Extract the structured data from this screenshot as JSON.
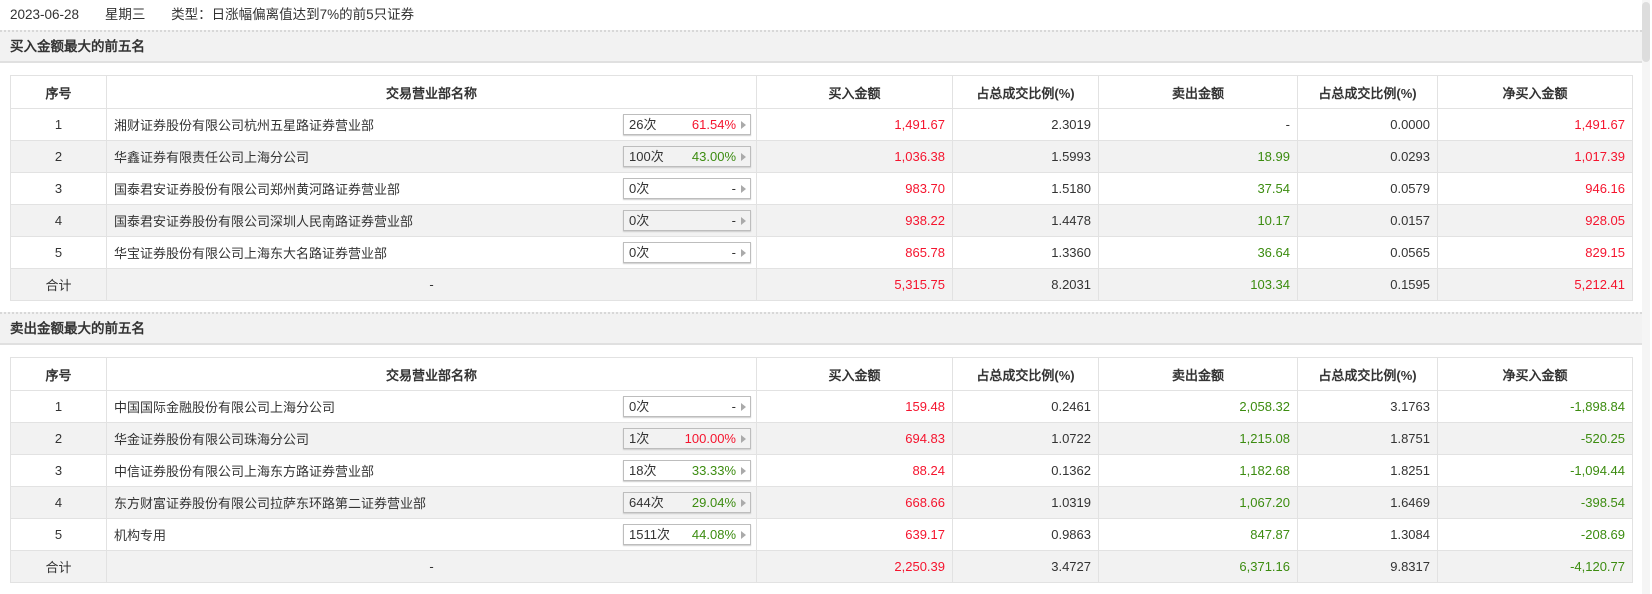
{
  "header": {
    "date": "2023-06-28",
    "weekday": "星期三",
    "type": "类型：日涨幅偏离值达到7%的前5只证券"
  },
  "columns": [
    "序号",
    "交易营业部名称",
    "买入金额",
    "占总成交比例(%)",
    "卖出金额",
    "占总成交比例(%)",
    "净买入金额"
  ],
  "colors": {
    "red": "#f5142e",
    "green": "#3c8c10"
  },
  "buy": {
    "title": "买入金额最大的前五名",
    "rows": [
      {
        "no": "1",
        "name": "湘财证券股份有限公司杭州五星路证券营业部",
        "times": "26次",
        "rate": "61.54%",
        "rate_color": "red",
        "buy": "1,491.67",
        "buy_pct": "2.3019",
        "sell": "-",
        "sell_pct": "0.0000",
        "net": "1,491.67",
        "net_color": "red"
      },
      {
        "no": "2",
        "name": "华鑫证券有限责任公司上海分公司",
        "times": "100次",
        "rate": "43.00%",
        "rate_color": "green",
        "buy": "1,036.38",
        "buy_pct": "1.5993",
        "sell": "18.99",
        "sell_pct": "0.0293",
        "net": "1,017.39",
        "net_color": "red"
      },
      {
        "no": "3",
        "name": "国泰君安证券股份有限公司郑州黄河路证券营业部",
        "times": "0次",
        "rate": "-",
        "rate_color": "",
        "buy": "983.70",
        "buy_pct": "1.5180",
        "sell": "37.54",
        "sell_pct": "0.0579",
        "net": "946.16",
        "net_color": "red"
      },
      {
        "no": "4",
        "name": "国泰君安证券股份有限公司深圳人民南路证券营业部",
        "times": "0次",
        "rate": "-",
        "rate_color": "",
        "buy": "938.22",
        "buy_pct": "1.4478",
        "sell": "10.17",
        "sell_pct": "0.0157",
        "net": "928.05",
        "net_color": "red"
      },
      {
        "no": "5",
        "name": "华宝证券股份有限公司上海东大名路证券营业部",
        "times": "0次",
        "rate": "-",
        "rate_color": "",
        "buy": "865.78",
        "buy_pct": "1.3360",
        "sell": "36.64",
        "sell_pct": "0.0565",
        "net": "829.15",
        "net_color": "red"
      }
    ],
    "total": {
      "label": "合计",
      "name": "-",
      "buy": "5,315.75",
      "buy_pct": "8.2031",
      "sell": "103.34",
      "sell_pct": "0.1595",
      "net": "5,212.41",
      "net_color": "red"
    }
  },
  "sell": {
    "title": "卖出金额最大的前五名",
    "rows": [
      {
        "no": "1",
        "name": "中国国际金融股份有限公司上海分公司",
        "times": "0次",
        "rate": "-",
        "rate_color": "",
        "buy": "159.48",
        "buy_pct": "0.2461",
        "sell": "2,058.32",
        "sell_pct": "3.1763",
        "net": "-1,898.84",
        "net_color": "green"
      },
      {
        "no": "2",
        "name": "华金证券股份有限公司珠海分公司",
        "times": "1次",
        "rate": "100.00%",
        "rate_color": "red",
        "buy": "694.83",
        "buy_pct": "1.0722",
        "sell": "1,215.08",
        "sell_pct": "1.8751",
        "net": "-520.25",
        "net_color": "green"
      },
      {
        "no": "3",
        "name": "中信证券股份有限公司上海东方路证券营业部",
        "times": "18次",
        "rate": "33.33%",
        "rate_color": "green",
        "buy": "88.24",
        "buy_pct": "0.1362",
        "sell": "1,182.68",
        "sell_pct": "1.8251",
        "net": "-1,094.44",
        "net_color": "green"
      },
      {
        "no": "4",
        "name": "东方财富证券股份有限公司拉萨东环路第二证券营业部",
        "times": "644次",
        "rate": "29.04%",
        "rate_color": "green",
        "buy": "668.66",
        "buy_pct": "1.0319",
        "sell": "1,067.20",
        "sell_pct": "1.6469",
        "net": "-398.54",
        "net_color": "green"
      },
      {
        "no": "5",
        "name": "机构专用",
        "times": "1511次",
        "rate": "44.08%",
        "rate_color": "green",
        "buy": "639.17",
        "buy_pct": "0.9863",
        "sell": "847.87",
        "sell_pct": "1.3084",
        "net": "-208.69",
        "net_color": "green"
      }
    ],
    "total": {
      "label": "合计",
      "name": "-",
      "buy": "2,250.39",
      "buy_pct": "3.4727",
      "sell": "6,371.16",
      "sell_pct": "9.8317",
      "net": "-4,120.77",
      "net_color": "green"
    }
  }
}
